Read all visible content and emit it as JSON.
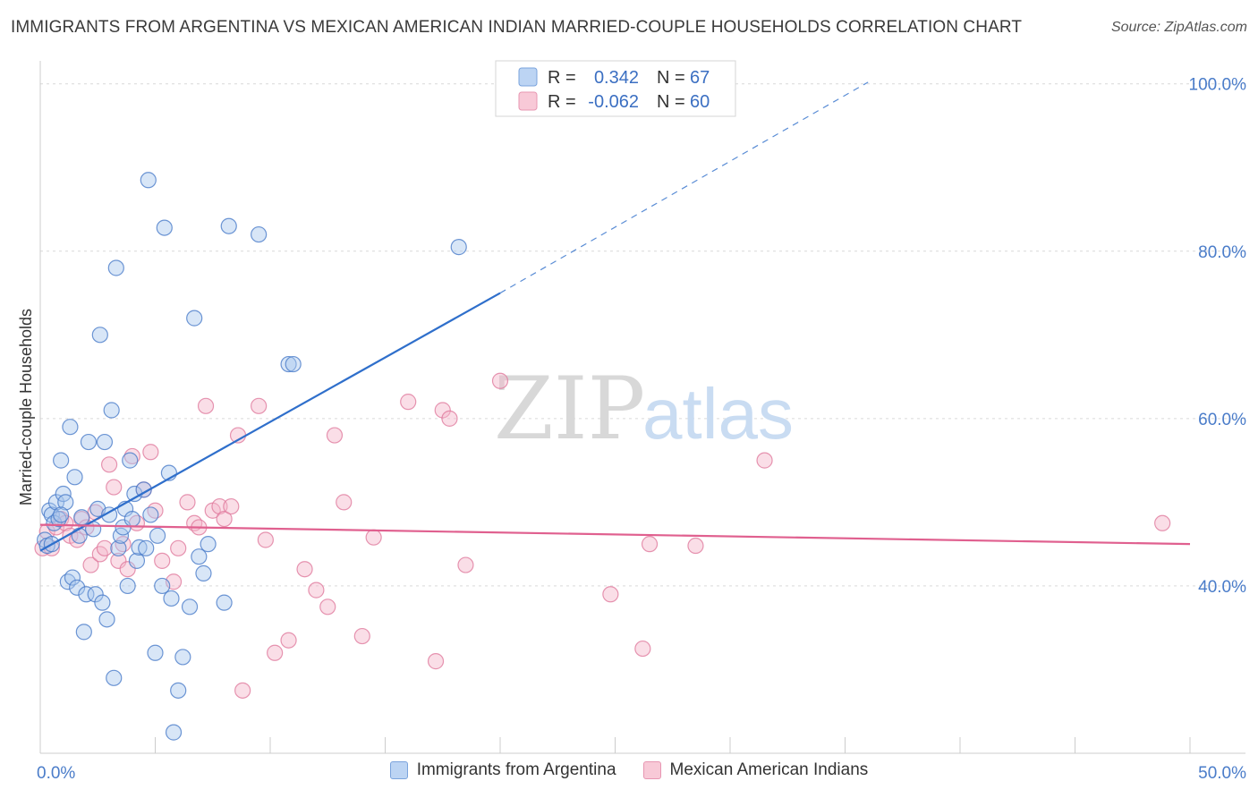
{
  "header": {
    "title": "IMMIGRANTS FROM ARGENTINA VS MEXICAN AMERICAN INDIAN MARRIED-COUPLE HOUSEHOLDS CORRELATION CHART",
    "source": "Source: ZipAtlas.com"
  },
  "watermark": {
    "zip": "ZIP",
    "atlas": "atlas"
  },
  "colors": {
    "blue": "#4a7cc9",
    "blue_fill": "#a9c8ee",
    "blue_line": "#2f6fcb",
    "pink": "#e07a9e",
    "pink_fill": "#f4b6c9",
    "pink_line": "#e0608f",
    "grid": "#d9d9d9"
  },
  "legend": {
    "rows": [
      {
        "r_label": "R =",
        "r_value": "0.342",
        "n_label": "N =",
        "n_value": "67"
      },
      {
        "r_label": "R =",
        "r_value": "-0.062",
        "n_label": "N =",
        "n_value": "60"
      }
    ]
  },
  "chart_data": {
    "type": "scatter",
    "title": "IMMIGRANTS FROM ARGENTINA VS MEXICAN AMERICAN INDIAN MARRIED-COUPLE HOUSEHOLDS CORRELATION CHART",
    "xlabel": "",
    "ylabel": "Married-couple Households",
    "xlim": [
      0,
      50
    ],
    "ylim": [
      20,
      102
    ],
    "x_tick_labels": [
      {
        "value": 0,
        "label": "0.0%"
      },
      {
        "value": 50,
        "label": "50.0%"
      }
    ],
    "y_tick_labels": [
      {
        "value": 100,
        "label": "100.0%"
      },
      {
        "value": 80,
        "label": "80.0%"
      },
      {
        "value": 60,
        "label": "60.0%"
      },
      {
        "value": 40,
        "label": "40.0%"
      }
    ],
    "x_minor_ticks": [
      0,
      5,
      10,
      15,
      20,
      25,
      30,
      35,
      40,
      45,
      50
    ],
    "legend_position": "top-center",
    "series": [
      {
        "name": "Immigrants from Argentina",
        "color": "#4a7cc9",
        "trend": {
          "x": [
            0,
            20
          ],
          "y": [
            44.2,
            75.0
          ],
          "dashed_to": [
            36,
            100.2
          ]
        },
        "points": [
          [
            0.2,
            45.5
          ],
          [
            0.3,
            44.8
          ],
          [
            0.4,
            49.0
          ],
          [
            0.5,
            48.5
          ],
          [
            0.6,
            47.5
          ],
          [
            0.7,
            50.0
          ],
          [
            0.8,
            48.0
          ],
          [
            0.9,
            55.0
          ],
          [
            1.0,
            51.0
          ],
          [
            1.1,
            50.0
          ],
          [
            1.2,
            40.5
          ],
          [
            1.3,
            59.0
          ],
          [
            1.4,
            41.0
          ],
          [
            1.5,
            53.0
          ],
          [
            1.6,
            39.8
          ],
          [
            1.7,
            46.0
          ],
          [
            1.8,
            48.2
          ],
          [
            1.9,
            34.5
          ],
          [
            2.0,
            39.0
          ],
          [
            2.1,
            57.2
          ],
          [
            2.3,
            46.8
          ],
          [
            2.4,
            39.0
          ],
          [
            2.5,
            49.2
          ],
          [
            2.6,
            70.0
          ],
          [
            2.7,
            38.0
          ],
          [
            2.8,
            57.2
          ],
          [
            2.9,
            36.0
          ],
          [
            3.0,
            48.5
          ],
          [
            3.1,
            61.0
          ],
          [
            3.2,
            29.0
          ],
          [
            3.3,
            78.0
          ],
          [
            3.4,
            44.5
          ],
          [
            3.5,
            46.0
          ],
          [
            3.6,
            47.0
          ],
          [
            3.7,
            49.2
          ],
          [
            3.8,
            40.0
          ],
          [
            3.9,
            55.0
          ],
          [
            4.0,
            48.0
          ],
          [
            4.1,
            51.0
          ],
          [
            4.2,
            43.0
          ],
          [
            4.3,
            44.6
          ],
          [
            4.5,
            51.5
          ],
          [
            4.6,
            44.5
          ],
          [
            4.7,
            88.5
          ],
          [
            4.8,
            48.5
          ],
          [
            5.0,
            32.0
          ],
          [
            5.1,
            46.0
          ],
          [
            5.3,
            40.0
          ],
          [
            5.4,
            82.8
          ],
          [
            5.6,
            53.5
          ],
          [
            5.7,
            38.5
          ],
          [
            5.8,
            22.5
          ],
          [
            6.0,
            27.5
          ],
          [
            6.2,
            31.5
          ],
          [
            6.5,
            37.5
          ],
          [
            6.7,
            72.0
          ],
          [
            6.9,
            43.5
          ],
          [
            7.1,
            41.5
          ],
          [
            7.3,
            45.0
          ],
          [
            8.0,
            38.0
          ],
          [
            8.2,
            83.0
          ],
          [
            9.5,
            82.0
          ],
          [
            10.8,
            66.5
          ],
          [
            11.0,
            66.5
          ],
          [
            18.2,
            80.5
          ],
          [
            0.5,
            45.0
          ],
          [
            0.9,
            48.5
          ]
        ]
      },
      {
        "name": "Mexican American Indians",
        "color": "#e07a9e",
        "trend": {
          "x": [
            0,
            50
          ],
          "y": [
            47.3,
            45.0
          ]
        },
        "points": [
          [
            0.1,
            44.5
          ],
          [
            0.3,
            46.5
          ],
          [
            0.5,
            44.5
          ],
          [
            0.7,
            47.0
          ],
          [
            0.9,
            48.0
          ],
          [
            1.1,
            47.5
          ],
          [
            1.3,
            46.0
          ],
          [
            1.6,
            45.5
          ],
          [
            1.8,
            48.0
          ],
          [
            2.0,
            47.0
          ],
          [
            2.2,
            42.5
          ],
          [
            2.4,
            48.8
          ],
          [
            2.6,
            43.8
          ],
          [
            2.8,
            44.5
          ],
          [
            3.0,
            54.5
          ],
          [
            3.2,
            51.8
          ],
          [
            3.4,
            43.0
          ],
          [
            3.6,
            45.0
          ],
          [
            3.8,
            42.0
          ],
          [
            4.0,
            55.5
          ],
          [
            4.2,
            47.5
          ],
          [
            4.5,
            51.5
          ],
          [
            4.8,
            56.0
          ],
          [
            5.0,
            49.0
          ],
          [
            5.3,
            43.0
          ],
          [
            5.8,
            40.5
          ],
          [
            6.0,
            44.5
          ],
          [
            6.4,
            50.0
          ],
          [
            6.7,
            47.5
          ],
          [
            6.9,
            47.0
          ],
          [
            7.2,
            61.5
          ],
          [
            7.5,
            49.0
          ],
          [
            7.8,
            49.5
          ],
          [
            8.0,
            48.0
          ],
          [
            8.3,
            49.5
          ],
          [
            8.6,
            58.0
          ],
          [
            8.8,
            27.5
          ],
          [
            9.5,
            61.5
          ],
          [
            9.8,
            45.5
          ],
          [
            10.2,
            32.0
          ],
          [
            10.8,
            33.5
          ],
          [
            11.5,
            42.0
          ],
          [
            12.0,
            39.5
          ],
          [
            12.5,
            37.5
          ],
          [
            12.8,
            58.0
          ],
          [
            13.2,
            50.0
          ],
          [
            14.0,
            34.0
          ],
          [
            14.5,
            45.8
          ],
          [
            16.0,
            62.0
          ],
          [
            17.2,
            31.0
          ],
          [
            17.5,
            61.0
          ],
          [
            17.8,
            60.0
          ],
          [
            18.5,
            42.5
          ],
          [
            20.0,
            64.5
          ],
          [
            24.8,
            39.0
          ],
          [
            26.2,
            32.5
          ],
          [
            26.5,
            45.0
          ],
          [
            28.5,
            44.8
          ],
          [
            31.5,
            55.0
          ],
          [
            48.8,
            47.5
          ]
        ]
      }
    ]
  }
}
